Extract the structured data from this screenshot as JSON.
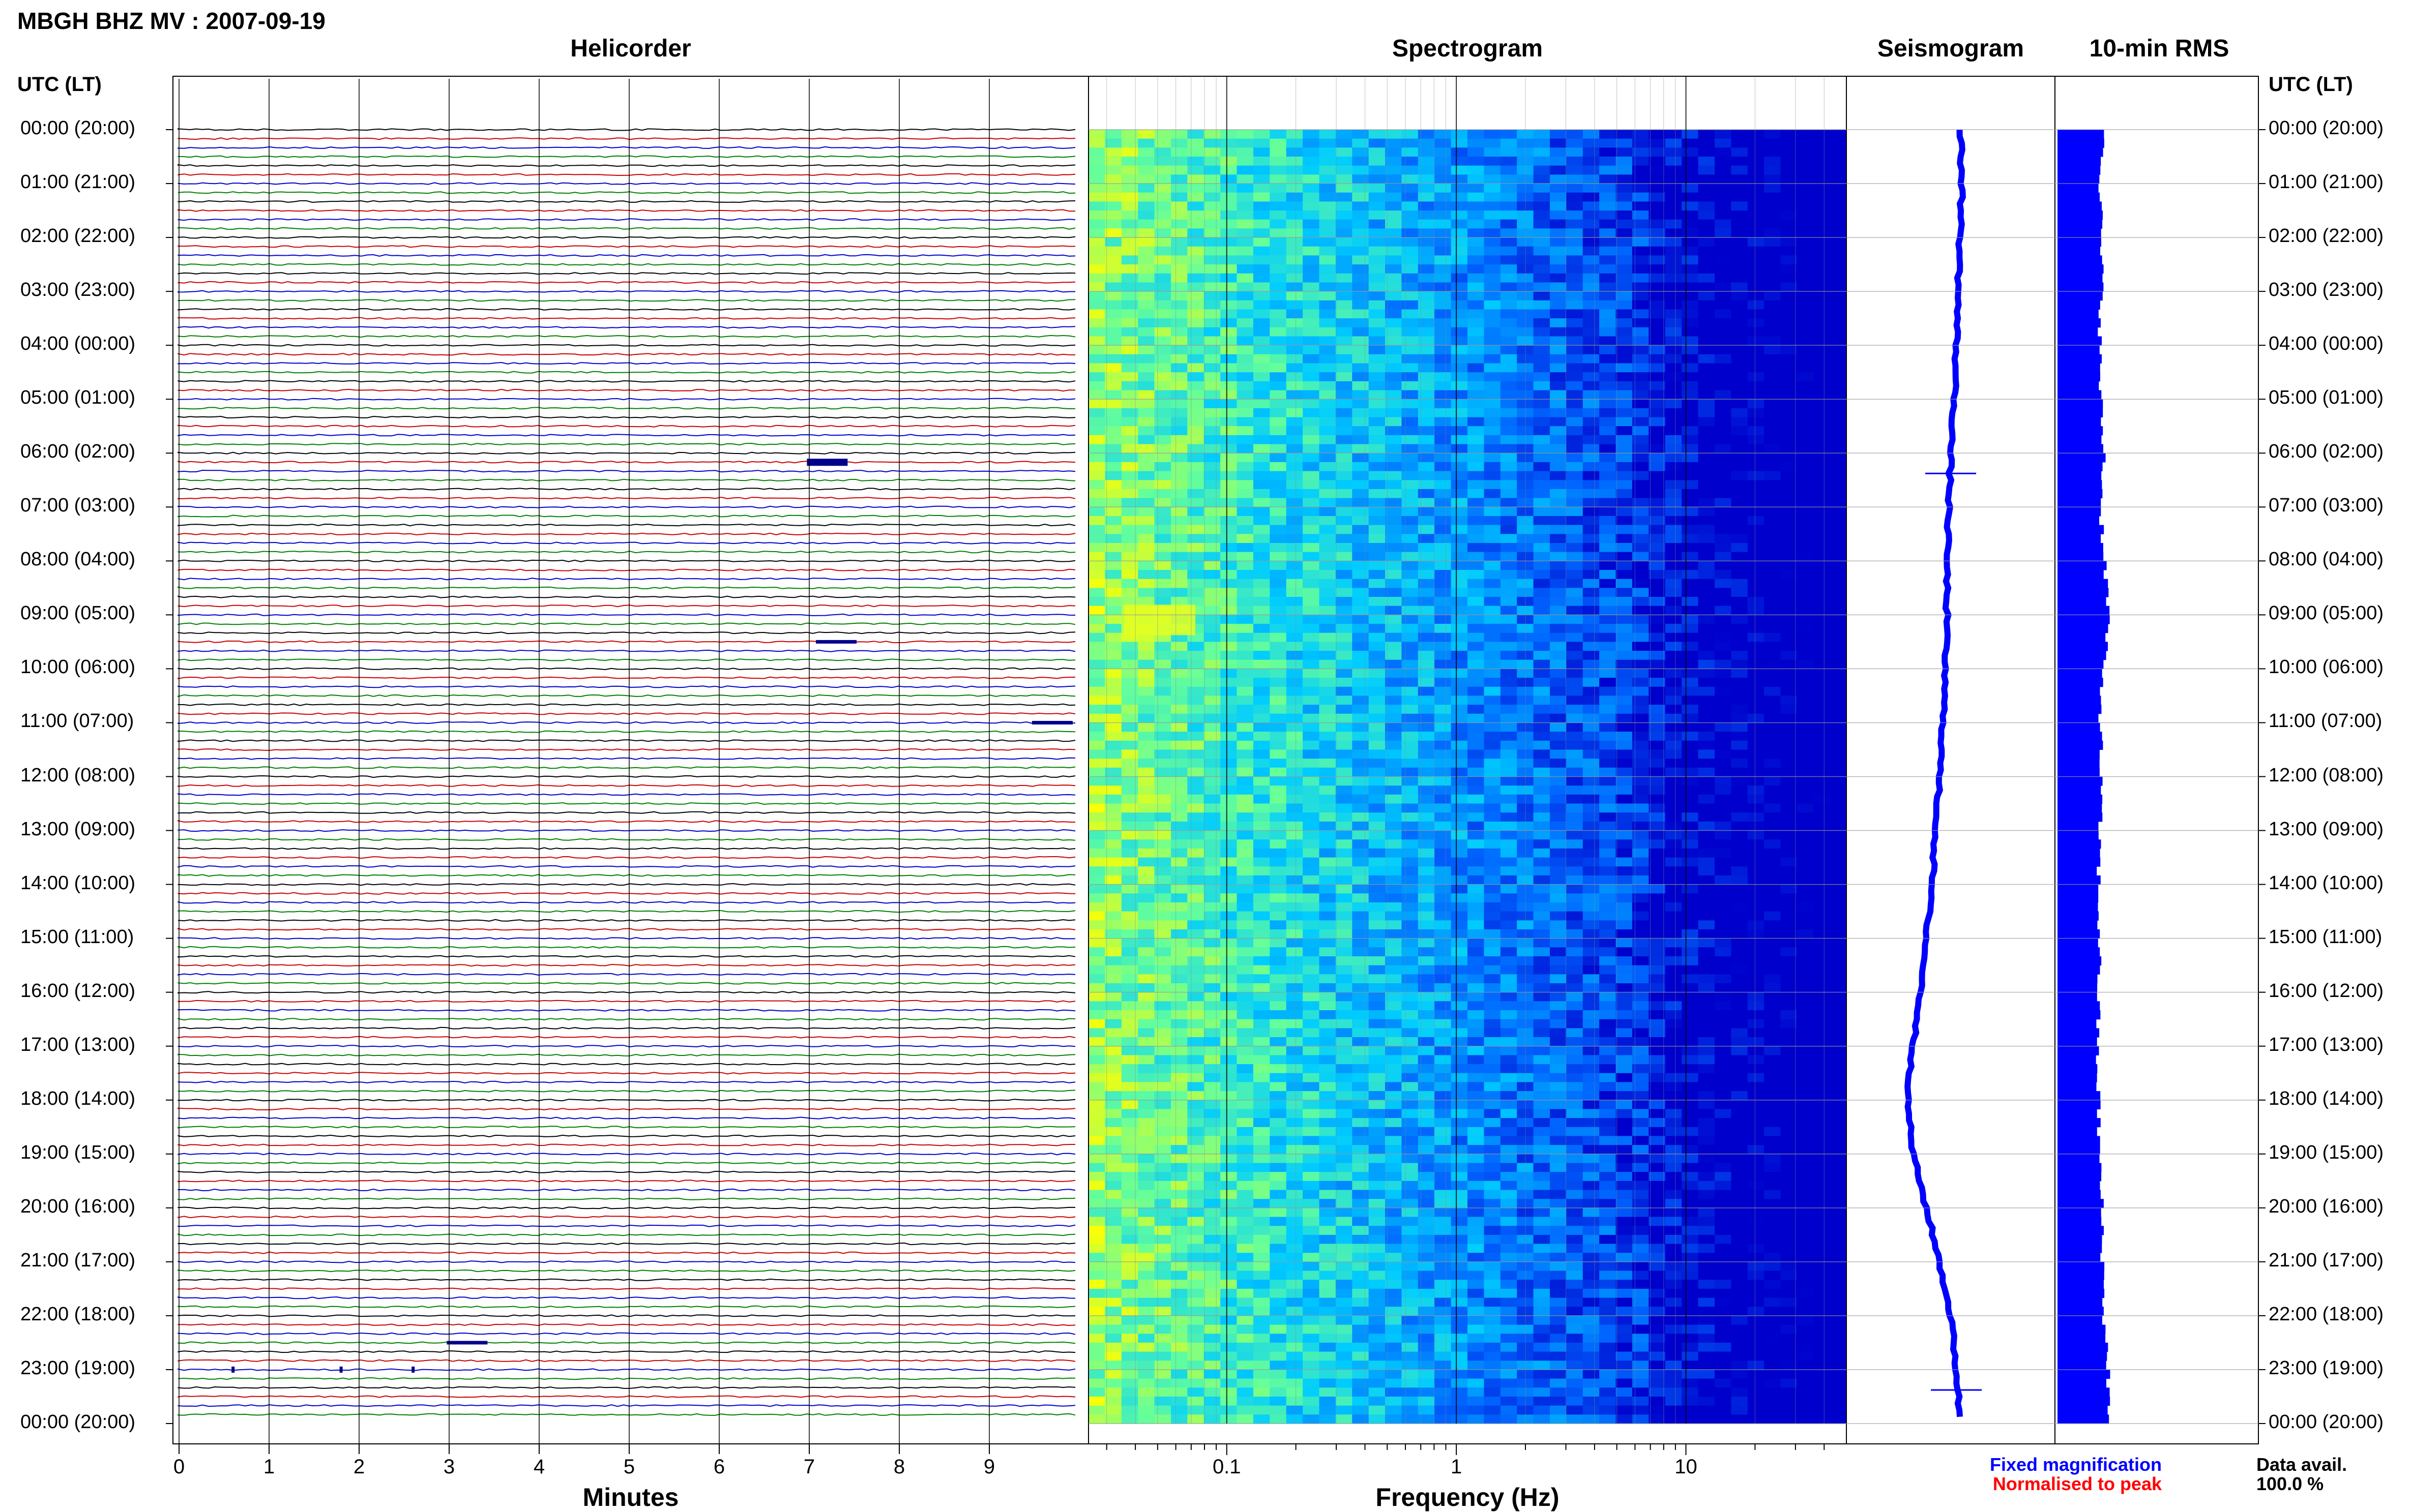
{
  "page": {
    "title": "MBGH BHZ MV : 2007-09-19",
    "utc_label_left": "UTC (LT)",
    "utc_label_right": "UTC (LT)"
  },
  "panels": {
    "helicorder": "Helicorder",
    "spectrogram": "Spectrogram",
    "seismogram": "Seismogram",
    "rms": "10-min RMS"
  },
  "axes": {
    "helicorder_xlabel": "Minutes",
    "spectrogram_xlabel": "Frequency (Hz)"
  },
  "legend": {
    "fixed": "Fixed magnification",
    "normalised": "Normalised to peak",
    "fixed_color": "#0000ff",
    "normalised_color": "#ff0000"
  },
  "availability": {
    "label": "Data avail.",
    "value": "100.0 %"
  },
  "time_labels": [
    "00:00 (20:00)",
    "01:00 (21:00)",
    "02:00 (22:00)",
    "03:00 (23:00)",
    "04:00 (00:00)",
    "05:00 (01:00)",
    "06:00 (02:00)",
    "07:00 (03:00)",
    "08:00 (04:00)",
    "09:00 (05:00)",
    "10:00 (06:00)",
    "11:00 (07:00)",
    "12:00 (08:00)",
    "13:00 (09:00)",
    "14:00 (10:00)",
    "15:00 (11:00)",
    "16:00 (12:00)",
    "17:00 (13:00)",
    "18:00 (14:00)",
    "19:00 (15:00)",
    "20:00 (16:00)",
    "21:00 (17:00)",
    "22:00 (18:00)",
    "23:00 (19:00)",
    "00:00 (20:00)"
  ],
  "chart_data": [
    {
      "type": "line",
      "panel": "Helicorder",
      "xlabel": "Minutes",
      "x_ticks": [
        "0",
        "1",
        "2",
        "3",
        "4",
        "5",
        "6",
        "7",
        "8",
        "9"
      ],
      "xlim": [
        0,
        10
      ],
      "traces_per_hour": 6,
      "trace_minutes": 10,
      "trace_colors": [
        "#000000",
        "#cc0000",
        "#0000cc",
        "#008000"
      ],
      "events": [
        {
          "hour_offset": 6.17,
          "minute": 7.2,
          "amp": "medium"
        },
        {
          "hour_offset": 9.5,
          "minute": 7.3,
          "amp": "small"
        },
        {
          "hour_offset": 11.0,
          "minute": 9.7,
          "amp": "small"
        },
        {
          "hour_offset": 22.5,
          "minute": 3.2,
          "amp": "small"
        },
        {
          "hour_offset": 23.0,
          "minute": 0.6,
          "amp": "spike"
        },
        {
          "hour_offset": 23.0,
          "minute": 1.8,
          "amp": "spike"
        },
        {
          "hour_offset": 23.0,
          "minute": 2.6,
          "amp": "spike"
        }
      ]
    },
    {
      "type": "heatmap",
      "panel": "Spectrogram",
      "xlabel": "Frequency (Hz)",
      "x_scale": "log",
      "xlim": [
        0.025,
        50
      ],
      "x_ticks": [
        "0.1",
        "1",
        "10"
      ],
      "colormap": [
        "#0000cc",
        "#0066ff",
        "#00ccff",
        "#66ff99",
        "#ffff00"
      ],
      "rows": 144
    },
    {
      "type": "line",
      "panel": "Seismogram",
      "color": "#0000ff",
      "description_points": [
        0.55,
        0.56,
        0.55,
        0.54,
        0.53,
        0.52,
        0.5,
        0.49,
        0.48,
        0.48,
        0.47,
        0.46,
        0.44,
        0.42,
        0.4,
        0.37,
        0.34,
        0.3,
        0.27,
        0.3,
        0.37,
        0.44,
        0.5,
        0.53,
        0.55
      ]
    },
    {
      "type": "bar",
      "panel": "10-min RMS",
      "color": "#0000ff",
      "values_hourly": [
        1.2,
        1.0,
        1.0,
        1.05,
        0.95,
        1.0,
        1.15,
        1.0,
        1.2,
        1.35,
        1.05,
        1.0,
        1.0,
        0.95,
        0.9,
        0.95,
        0.9,
        0.85,
        0.9,
        0.95,
        1.05,
        1.1,
        1.15,
        1.35,
        1.3
      ]
    }
  ]
}
